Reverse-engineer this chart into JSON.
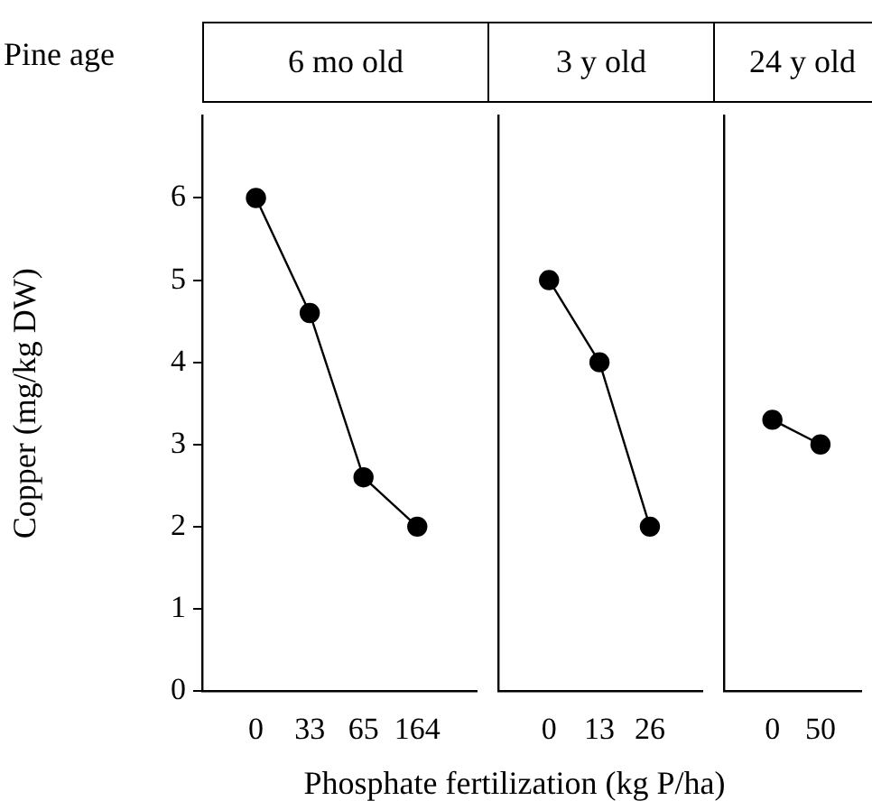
{
  "chart_data": [
    {
      "type": "line",
      "title": "6 mo old",
      "annotations": [
        "Pine age"
      ],
      "ylabel": "Copper (mg/kg DW)",
      "categories": [
        "0",
        "33",
        "65",
        "164"
      ],
      "series": [
        {
          "color": "#000000",
          "values": [
            6,
            4.6,
            2.6,
            2
          ]
        }
      ],
      "ylim": [
        0,
        7
      ],
      "yticks": [
        0,
        1,
        2,
        3,
        4,
        5,
        6
      ],
      "marker": "circle"
    },
    {
      "type": "line",
      "title": "3 y old",
      "xlabel": "Phosphate fertilization (kg P/ha)",
      "categories": [
        "0",
        "13",
        "26"
      ],
      "series": [
        {
          "color": "#000000",
          "values": [
            5,
            4,
            2
          ]
        }
      ],
      "ylim": [
        0,
        7
      ],
      "tick_labels": "x",
      "marker": "circle"
    },
    {
      "type": "line",
      "title": "24 y old",
      "categories": [
        "0",
        "50"
      ],
      "series": [
        {
          "color": "#000000",
          "values": [
            3.3,
            3
          ]
        }
      ],
      "ylim": [
        0,
        7
      ],
      "tick_labels": "x",
      "marker": "circle"
    }
  ]
}
